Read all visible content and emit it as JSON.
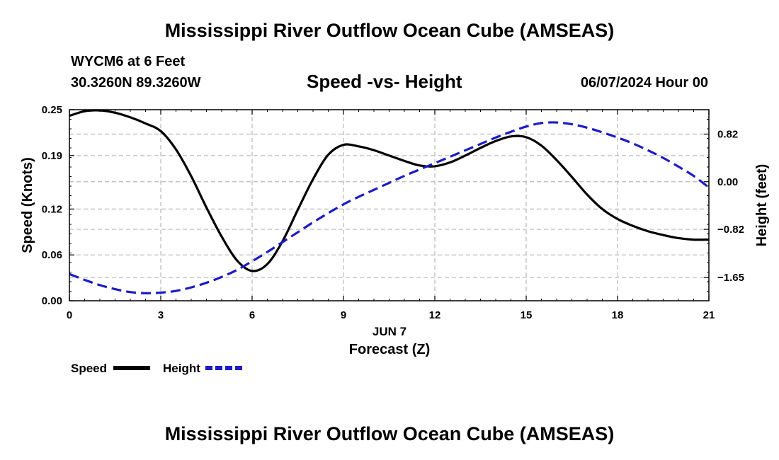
{
  "page": {
    "title_top": "Mississippi River Outflow Ocean Cube (AMSEAS)",
    "title_bottom": "Mississippi River Outflow Ocean Cube (AMSEAS)",
    "station": "WYCM6 at 6 Feet",
    "coords": "30.3260N  89.3260W",
    "subtitle": "Speed -vs- Height",
    "datetime": "06/07/2024 Hour 00"
  },
  "chart_data": {
    "type": "line",
    "title": "Speed -vs- Height",
    "xlabel": "Forecast (Z)",
    "xlabel_date": "JUN 7",
    "ylabel": "Speed (Knots)",
    "y2label": "Height (feet)",
    "xlim": [
      0,
      21
    ],
    "ylim": [
      0,
      0.25
    ],
    "y2lim": [
      -2.05,
      1.24
    ],
    "x_ticks": [
      "0",
      "3",
      "6",
      "9",
      "12",
      "15",
      "18",
      "21"
    ],
    "y_ticks": [
      "0.00",
      "0.06",
      "0.12",
      "0.19",
      "0.25"
    ],
    "y2_ticks": [
      "−1.65",
      "−0.82",
      "0.00",
      "0.82"
    ],
    "grid": true,
    "legend_position": "bottom-left",
    "series": [
      {
        "name": "Speed",
        "axis": "left",
        "color": "#000000",
        "style": "solid",
        "x": [
          0,
          0.5,
          1,
          1.5,
          2,
          2.5,
          3,
          3.5,
          4,
          4.5,
          5,
          5.5,
          6,
          6.5,
          7,
          7.5,
          8,
          8.5,
          9,
          9.5,
          10,
          10.5,
          11,
          11.5,
          12,
          12.5,
          13,
          13.5,
          14,
          14.5,
          15,
          15.5,
          16,
          16.5,
          17,
          17.5,
          18,
          18.5,
          19,
          19.5,
          20,
          20.5,
          21
        ],
        "values": [
          0.242,
          0.248,
          0.249,
          0.246,
          0.24,
          0.232,
          0.222,
          0.198,
          0.163,
          0.122,
          0.084,
          0.053,
          0.039,
          0.048,
          0.078,
          0.119,
          0.159,
          0.191,
          0.204,
          0.202,
          0.197,
          0.19,
          0.183,
          0.177,
          0.176,
          0.181,
          0.19,
          0.2,
          0.209,
          0.215,
          0.214,
          0.203,
          0.184,
          0.162,
          0.139,
          0.12,
          0.107,
          0.098,
          0.091,
          0.086,
          0.082,
          0.08,
          0.08
        ]
      },
      {
        "name": "Height",
        "axis": "right",
        "color": "#1c1cc8",
        "style": "dashed",
        "x": [
          0,
          0.5,
          1,
          1.5,
          2,
          2.5,
          3,
          3.5,
          4,
          4.5,
          5,
          5.5,
          6,
          6.5,
          7,
          7.5,
          8,
          8.5,
          9,
          9.5,
          10,
          10.5,
          11,
          11.5,
          12,
          12.5,
          13,
          13.5,
          14,
          14.5,
          15,
          15.5,
          16,
          16.5,
          17,
          17.5,
          18,
          18.5,
          19,
          19.5,
          20,
          20.5,
          21
        ],
        "values": [
          -1.59,
          -1.69,
          -1.78,
          -1.85,
          -1.9,
          -1.92,
          -1.91,
          -1.88,
          -1.82,
          -1.74,
          -1.64,
          -1.52,
          -1.37,
          -1.21,
          -1.04,
          -0.87,
          -0.7,
          -0.54,
          -0.39,
          -0.26,
          -0.14,
          -0.02,
          0.1,
          0.21,
          0.32,
          0.43,
          0.54,
          0.65,
          0.76,
          0.86,
          0.95,
          1.01,
          1.02,
          0.99,
          0.93,
          0.85,
          0.76,
          0.66,
          0.54,
          0.41,
          0.26,
          0.1,
          -0.1
        ]
      }
    ]
  }
}
